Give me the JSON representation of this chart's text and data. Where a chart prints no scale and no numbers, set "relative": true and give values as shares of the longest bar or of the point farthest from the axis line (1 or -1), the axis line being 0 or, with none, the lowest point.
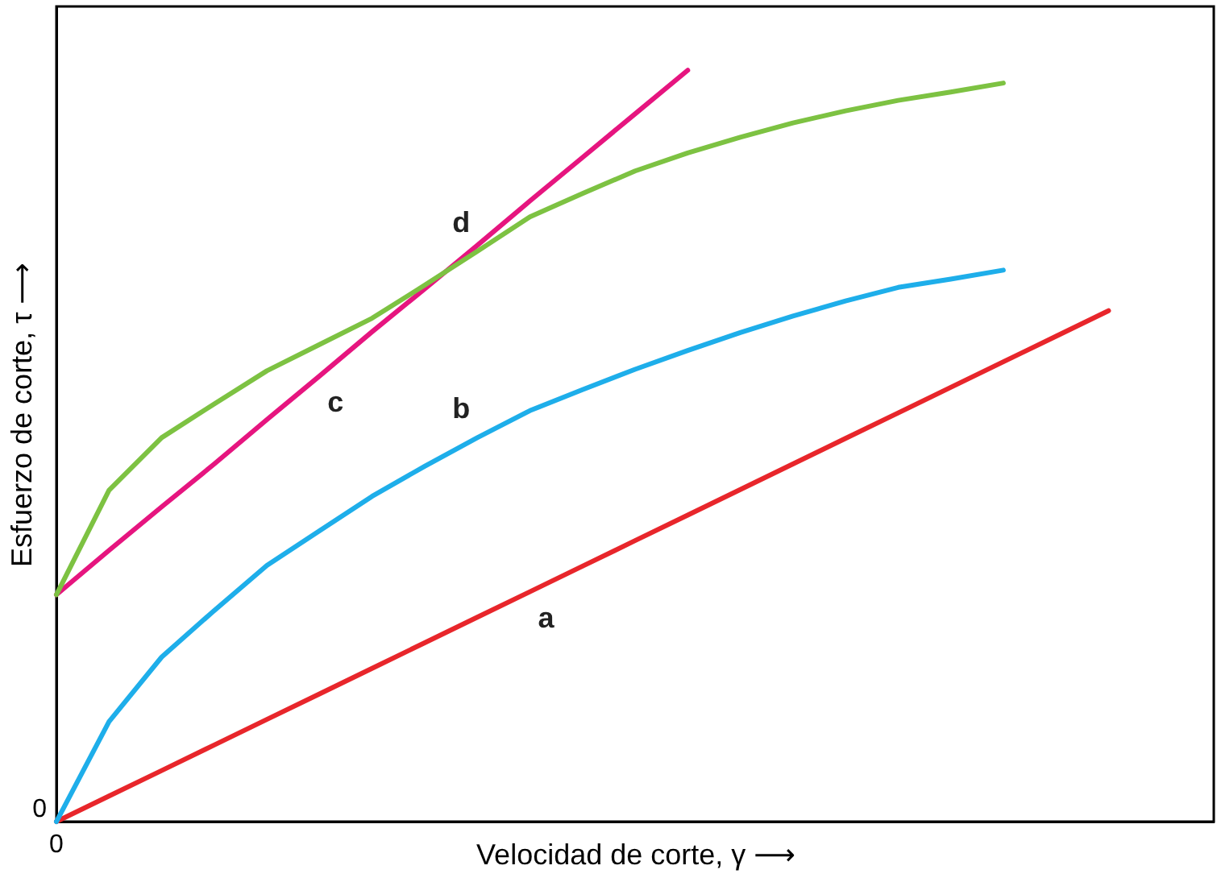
{
  "chart_data": {
    "type": "line",
    "relative": true,
    "xlabel": "Velocidad de corte, γ ⟶",
    "ylabel": "Esfuerzo de corte, τ ⟶",
    "marker": "none",
    "line_style": "solid",
    "categories": [
      null,
      null,
      null,
      null,
      null,
      null,
      null,
      null,
      null,
      null,
      null,
      null,
      null,
      null,
      null,
      null,
      null,
      null,
      null,
      null,
      null,
      null,
      null
    ],
    "series": [
      {
        "name": "a",
        "color": "#e8262b",
        "values": [
          0,
          0.034,
          0.068,
          0.102,
          0.136,
          0.17,
          0.204,
          0.238,
          0.272,
          0.306,
          0.34,
          0.374,
          0.408,
          0.442,
          0.476,
          0.51,
          0.544,
          0.578,
          0.612,
          0.646,
          0.68,
          null,
          null
        ]
      },
      {
        "name": "b",
        "color": "#1eaeea",
        "values": [
          0,
          0.133,
          0.219,
          0.281,
          0.341,
          0.387,
          0.433,
          0.473,
          0.511,
          0.547,
          0.575,
          0.602,
          0.627,
          0.651,
          0.673,
          0.693,
          0.711,
          0.722,
          0.734,
          null,
          null,
          null,
          null
        ]
      },
      {
        "name": "c",
        "color": "#e6157f",
        "values": [
          0.302,
          0.361,
          0.419,
          0.476,
          0.535,
          0.593,
          0.652,
          0.709,
          0.767,
          0.826,
          0.884,
          0.942,
          1,
          null,
          null,
          null,
          null,
          null,
          null,
          null,
          null,
          null,
          null
        ]
      },
      {
        "name": "d",
        "color": "#7dc242",
        "values": [
          0.302,
          0.441,
          0.511,
          0.556,
          0.6,
          0.635,
          0.67,
          0.714,
          0.759,
          0.805,
          0.836,
          0.866,
          0.89,
          0.911,
          0.93,
          0.946,
          0.96,
          0.971,
          0.983,
          null,
          null,
          null,
          null
        ]
      }
    ],
    "annotations": [
      "0",
      "0"
    ]
  }
}
